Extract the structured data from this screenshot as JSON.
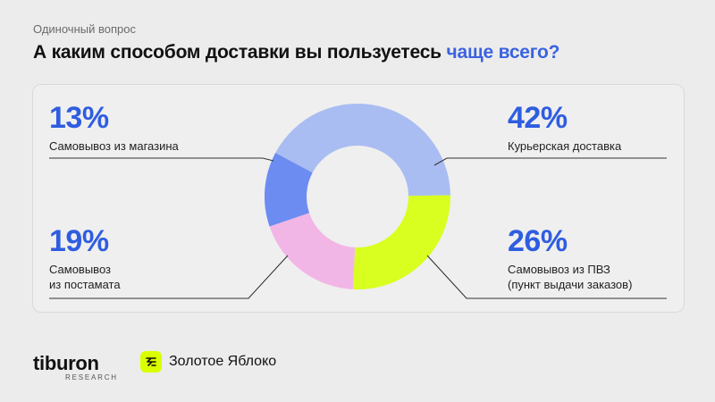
{
  "header": {
    "subtitle": "Одиночный вопрос",
    "title_main": "А каким способом доставки вы пользуетесь ",
    "title_accent": "чаще всего?"
  },
  "colors": {
    "accent": "#3a63e0",
    "percent": "#2f5de0",
    "courier": "#a9bdf2",
    "pvz": "#d8ff1f",
    "postamat": "#f2b6e6",
    "store": "#6c8cf2"
  },
  "chart_data": {
    "type": "pie",
    "donut": true,
    "slices": [
      {
        "label_line1": "Курьерская доставка",
        "label_line2": "",
        "value": 42,
        "percent": "42%",
        "color": "#a9bdf2"
      },
      {
        "label_line1": "Самовывоз из ПВЗ",
        "label_line2": "(пункт выдачи заказов)",
        "value": 26,
        "percent": "26%",
        "color": "#d8ff1f"
      },
      {
        "label_line1": "Самовывоз",
        "label_line2": "из постамата",
        "value": 19,
        "percent": "19%",
        "color": "#f2b6e6"
      },
      {
        "label_line1": "Самовывоз из магазина",
        "label_line2": "",
        "value": 13,
        "percent": "13%",
        "color": "#6c8cf2"
      }
    ]
  },
  "footer": {
    "logo1_main": "tiburon",
    "logo1_sub": "RESEARCH",
    "logo2_text": "Золотое Яблоко",
    "logo2_icon": "apple-logo-icon"
  }
}
